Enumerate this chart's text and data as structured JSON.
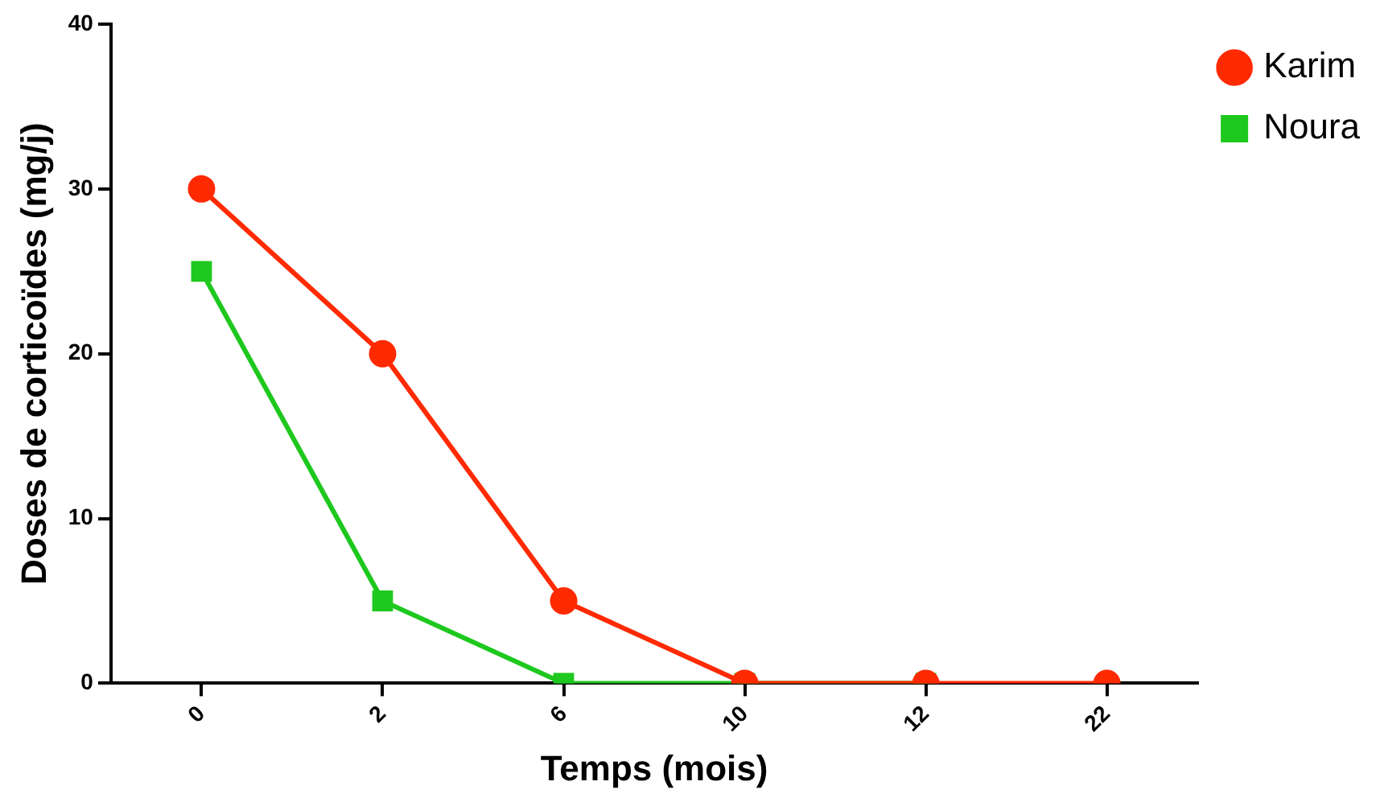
{
  "chart_data": {
    "type": "line",
    "xlabel": "Temps (mois)",
    "ylabel": "Doses de corticoïdes (mg/j)",
    "categories": [
      "0",
      "2",
      "6",
      "10",
      "12",
      "22"
    ],
    "series": [
      {
        "name": "Karim",
        "color": "#ff2a00",
        "marker": "circle",
        "values": [
          30,
          20,
          5,
          0,
          0,
          0
        ]
      },
      {
        "name": "Noura",
        "color": "#1ec81e",
        "marker": "square",
        "values": [
          25,
          5,
          0,
          0,
          0,
          null
        ]
      }
    ],
    "ylim": [
      0,
      40
    ],
    "yticks": [
      0,
      10,
      20,
      30,
      40
    ],
    "grid": false,
    "legend": "top right",
    "line_style": "solid"
  }
}
